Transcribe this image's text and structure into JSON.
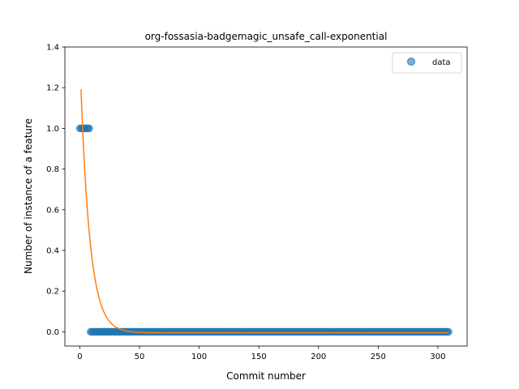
{
  "chart_data": {
    "type": "scatter",
    "title": "org-fossasia-badgemagic_unsafe_call-exponential",
    "xlabel": "Commit number",
    "ylabel": "Number of instance of a feature",
    "xlim": [
      -12.5,
      324.5
    ],
    "ylim": [
      -0.07,
      1.4
    ],
    "xticks": [
      0,
      50,
      100,
      150,
      200,
      250,
      300
    ],
    "yticks": [
      0.0,
      0.2,
      0.4,
      0.6,
      0.8,
      1.0,
      1.2,
      1.4
    ],
    "ytick_labels": [
      "0.0",
      "0.2",
      "0.4",
      "0.6",
      "0.8",
      "1.0",
      "1.2",
      "1.4"
    ],
    "grid": false,
    "legend": {
      "placement": "top-right",
      "entries": [
        "data"
      ]
    },
    "series": [
      {
        "name": "data",
        "kind": "scatter",
        "color": "#1f77b4",
        "segments": [
          {
            "x_start": 0,
            "x_end": 8,
            "y": 1.0
          },
          {
            "x_start": 9,
            "x_end": 309,
            "y": 0.0
          }
        ]
      },
      {
        "kind": "line",
        "color": "#ff7f0e",
        "model": "a*exp(-b*x)+c",
        "params": {
          "a": 1.36,
          "b": 0.128,
          "c": -0.005
        },
        "x_range": [
          1,
          309
        ]
      }
    ]
  }
}
